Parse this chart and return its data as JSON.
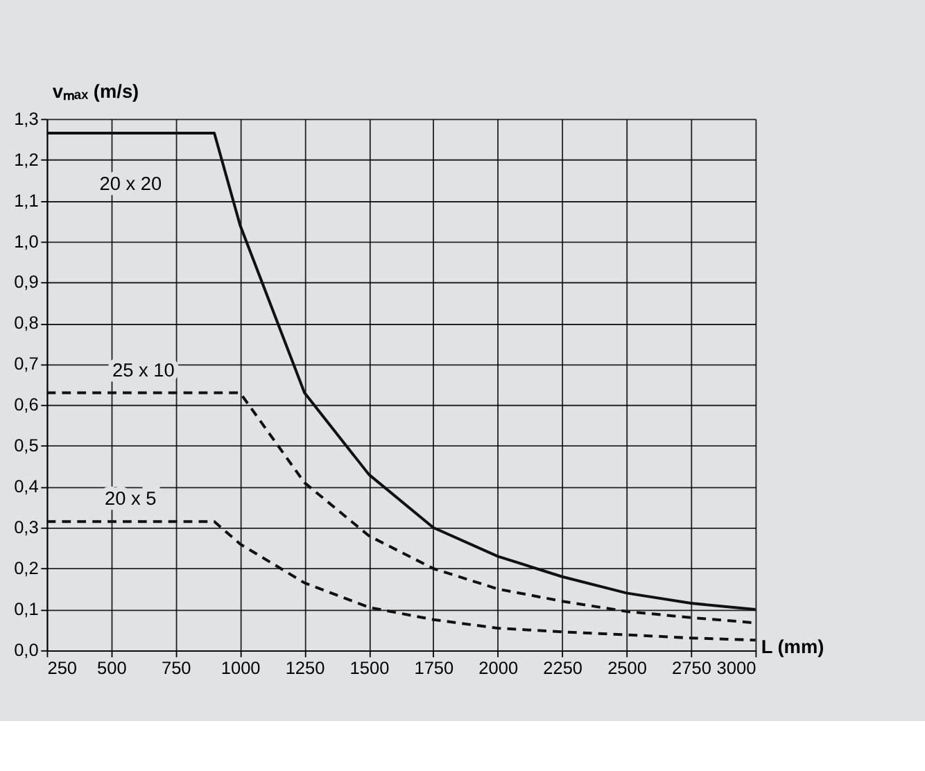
{
  "chart_data": {
    "type": "line",
    "xlabel": "L (mm)",
    "ylabel": "vₘₐₓ (m/s)",
    "xlim": [
      250,
      3000
    ],
    "xticks": [
      250,
      500,
      750,
      1000,
      1250,
      1500,
      1750,
      2000,
      2250,
      2500,
      2750,
      3000
    ],
    "ylim": [
      0,
      1.3
    ],
    "yticks": [
      {
        "value": 0,
        "label": "0,0"
      },
      {
        "value": 0.1,
        "label": "0,1"
      },
      {
        "value": 0.2,
        "label": "0,2"
      },
      {
        "value": 0.3,
        "label": "0,3"
      },
      {
        "value": 0.4,
        "label": "0,4"
      },
      {
        "value": 0.5,
        "label": "0,5"
      },
      {
        "value": 0.6,
        "label": "0,6"
      },
      {
        "value": 0.7,
        "label": "0,7"
      },
      {
        "value": 0.8,
        "label": "0,8"
      },
      {
        "value": 0.9,
        "label": "0,9"
      },
      {
        "value": 1.0,
        "label": "1,0"
      },
      {
        "value": 1.1,
        "label": "1,1"
      },
      {
        "value": 1.2,
        "label": "1,2"
      },
      {
        "value": 1.3,
        "label": "1,3"
      }
    ],
    "grid": true,
    "marker": "none",
    "series": [
      {
        "name": "20 x 20",
        "color": "#111111",
        "line_style": "solid",
        "x": [
          250,
          900,
          1000,
          1250,
          1500,
          1750,
          2000,
          2250,
          2500,
          2750,
          3000
        ],
        "values": [
          1.265,
          1.265,
          1.04,
          0.63,
          0.43,
          0.3,
          0.23,
          0.18,
          0.14,
          0.115,
          0.1
        ]
      },
      {
        "name": "25 x 10",
        "color": "#111111",
        "line_style": "dashed",
        "x": [
          250,
          1000,
          1250,
          1500,
          1750,
          2000,
          2250,
          2500,
          2750,
          3000
        ],
        "values": [
          0.63,
          0.63,
          0.41,
          0.28,
          0.2,
          0.15,
          0.12,
          0.095,
          0.08,
          0.067
        ]
      },
      {
        "name": "20 x 5",
        "color": "#111111",
        "line_style": "dashed",
        "x": [
          250,
          900,
          1000,
          1250,
          1500,
          1750,
          2000,
          2250,
          2500,
          2750,
          3000
        ],
        "values": [
          0.315,
          0.315,
          0.26,
          0.165,
          0.105,
          0.075,
          0.054,
          0.045,
          0.038,
          0.03,
          0.025
        ]
      }
    ]
  }
}
